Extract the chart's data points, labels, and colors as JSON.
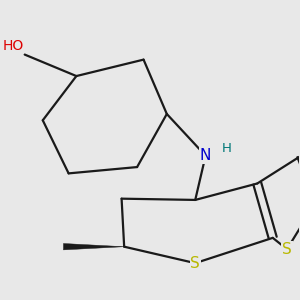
{
  "background_color": "#e8e8e8",
  "bond_color": "#1a1a1a",
  "bond_width": 1.6,
  "atom_colors": {
    "O": "#dd0000",
    "N": "#0000cc",
    "S": "#b8b800",
    "H_N": "#007777",
    "H_O": "#dd0000"
  },
  "font_size": 11,
  "figsize": [
    3.0,
    3.0
  ],
  "dpi": 100,
  "xlim": [
    0.0,
    1.0
  ],
  "ylim": [
    0.08,
    1.02
  ]
}
